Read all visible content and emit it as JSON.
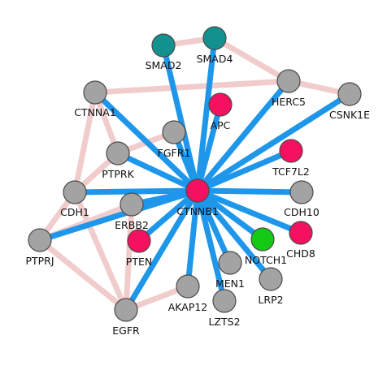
{
  "colors": {
    "gray": "#a3a3a3",
    "pink": "#f5115f",
    "teal": "#12918f",
    "green": "#14c914",
    "edge_blue": "#1e96ea",
    "edge_pink": "#f1cccc"
  },
  "nodes": [
    {
      "id": "SMAD2",
      "label": "SMAD2",
      "color": "teal"
    },
    {
      "id": "SMAD4",
      "label": "SMAD4",
      "color": "teal"
    },
    {
      "id": "HERC5",
      "label": "HERC5",
      "color": "gray"
    },
    {
      "id": "CSNK1E",
      "label": "CSNK1E",
      "color": "gray"
    },
    {
      "id": "CTNNA1",
      "label": "CTNNA1",
      "color": "gray"
    },
    {
      "id": "APC",
      "label": "APC",
      "color": "pink"
    },
    {
      "id": "FGFR1",
      "label": "FGFR1",
      "color": "gray"
    },
    {
      "id": "TCF7L2",
      "label": "TCF7L2",
      "color": "pink"
    },
    {
      "id": "PTPRK",
      "label": "PTPRK",
      "color": "gray"
    },
    {
      "id": "CTNNB1",
      "label": "CTNNB1",
      "color": "pink"
    },
    {
      "id": "CDH10",
      "label": "CDH10",
      "color": "gray"
    },
    {
      "id": "CDH1",
      "label": "CDH1",
      "color": "gray"
    },
    {
      "id": "ERBB2",
      "label": "ERBB2",
      "color": "gray"
    },
    {
      "id": "CHD8",
      "label": "CHD8",
      "color": "pink"
    },
    {
      "id": "NOTCH1",
      "label": "NOTCH1",
      "color": "green"
    },
    {
      "id": "PTPRJ",
      "label": "PTPRJ",
      "color": "gray"
    },
    {
      "id": "PTEN",
      "label": "PTEN",
      "color": "pink"
    },
    {
      "id": "MEN1",
      "label": "MEN1",
      "color": "gray"
    },
    {
      "id": "LRP2",
      "label": "LRP2",
      "color": "gray"
    },
    {
      "id": "AKAP12",
      "label": "AKAP12",
      "color": "gray"
    },
    {
      "id": "LZTS2",
      "label": "LZTS2",
      "color": "gray"
    },
    {
      "id": "EGFR",
      "label": "EGFR",
      "color": "gray"
    }
  ],
  "edges": [
    {
      "source": "SMAD2",
      "target": "SMAD4",
      "type": "pink"
    },
    {
      "source": "SMAD4",
      "target": "HERC5",
      "type": "pink"
    },
    {
      "source": "CTNNA1",
      "target": "HERC5",
      "type": "pink"
    },
    {
      "source": "HERC5",
      "target": "CSNK1E",
      "type": "pink"
    },
    {
      "source": "CTNNA1",
      "target": "CDH1",
      "type": "pink"
    },
    {
      "source": "CTNNA1",
      "target": "PTPRK",
      "type": "pink"
    },
    {
      "source": "FGFR1",
      "target": "PTPRK",
      "type": "pink"
    },
    {
      "source": "PTPRK",
      "target": "CDH1",
      "type": "pink"
    },
    {
      "source": "CDH1",
      "target": "PTPRJ",
      "type": "pink"
    },
    {
      "source": "CDH1",
      "target": "EGFR",
      "type": "pink"
    },
    {
      "source": "ERBB2",
      "target": "PTPRJ",
      "type": "pink"
    },
    {
      "source": "ERBB2",
      "target": "EGFR",
      "type": "pink"
    },
    {
      "source": "PTPRJ",
      "target": "EGFR",
      "type": "pink"
    },
    {
      "source": "EGFR",
      "target": "AKAP12",
      "type": "pink"
    },
    {
      "source": "CTNNB1",
      "target": "SMAD2",
      "type": "blue"
    },
    {
      "source": "CTNNB1",
      "target": "SMAD4",
      "type": "blue"
    },
    {
      "source": "CTNNB1",
      "target": "HERC5",
      "type": "blue"
    },
    {
      "source": "CTNNB1",
      "target": "CSNK1E",
      "type": "blue"
    },
    {
      "source": "CTNNB1",
      "target": "CTNNA1",
      "type": "blue"
    },
    {
      "source": "CTNNB1",
      "target": "APC",
      "type": "blue"
    },
    {
      "source": "CTNNB1",
      "target": "FGFR1",
      "type": "blue"
    },
    {
      "source": "CTNNB1",
      "target": "TCF7L2",
      "type": "blue"
    },
    {
      "source": "CTNNB1",
      "target": "PTPRK",
      "type": "blue"
    },
    {
      "source": "CTNNB1",
      "target": "CDH10",
      "type": "blue"
    },
    {
      "source": "CTNNB1",
      "target": "CDH1",
      "type": "blue"
    },
    {
      "source": "CTNNB1",
      "target": "ERBB2",
      "type": "blue"
    },
    {
      "source": "CTNNB1",
      "target": "CHD8",
      "type": "blue"
    },
    {
      "source": "CTNNB1",
      "target": "NOTCH1",
      "type": "blue"
    },
    {
      "source": "CTNNB1",
      "target": "PTPRJ",
      "type": "blue"
    },
    {
      "source": "CTNNB1",
      "target": "PTEN",
      "type": "blue"
    },
    {
      "source": "CTNNB1",
      "target": "MEN1",
      "type": "blue"
    },
    {
      "source": "CTNNB1",
      "target": "LRP2",
      "type": "blue"
    },
    {
      "source": "CTNNB1",
      "target": "AKAP12",
      "type": "blue"
    },
    {
      "source": "CTNNB1",
      "target": "LZTS2",
      "type": "blue"
    },
    {
      "source": "CTNNB1",
      "target": "EGFR",
      "type": "blue"
    }
  ]
}
